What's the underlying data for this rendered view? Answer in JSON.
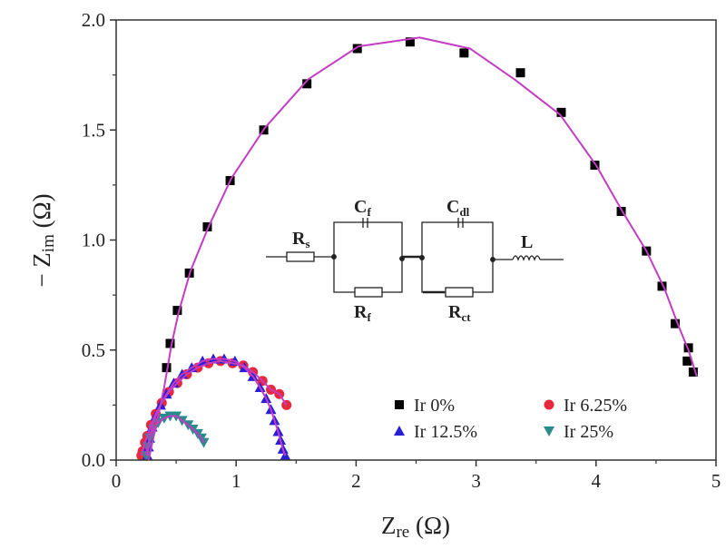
{
  "chart_data": {
    "type": "scatter",
    "title": "",
    "xlabel": {
      "main": "Z",
      "sub": "re",
      "unit": " (Ω)"
    },
    "ylabel": {
      "main": "− Z",
      "sub": "im",
      "unit": " (Ω)"
    },
    "xlim": [
      0,
      5
    ],
    "ylim": [
      0,
      2.0
    ],
    "xticks": [
      "0",
      "1",
      "2",
      "3",
      "4",
      "5"
    ],
    "xtick_values": [
      0,
      1,
      2,
      3,
      4,
      5
    ],
    "yticks": [
      "0.0",
      "0.5",
      "1.0",
      "1.5",
      "2.0"
    ],
    "ytick_values": [
      0,
      0.5,
      1.0,
      1.5,
      2.0
    ],
    "grid": false,
    "legend_position": "bottom-right",
    "fit_color": "#c43cc4",
    "series": [
      {
        "name": "Ir 0%",
        "marker": "square",
        "color": "#000000",
        "x": [
          0.42,
          0.45,
          0.51,
          0.61,
          0.76,
          0.95,
          1.23,
          1.59,
          2.01,
          2.45,
          2.9,
          3.37,
          3.71,
          3.99,
          4.21,
          4.42,
          4.55,
          4.66,
          4.77,
          4.76,
          4.81
        ],
        "y": [
          0.42,
          0.53,
          0.68,
          0.85,
          1.06,
          1.27,
          1.5,
          1.71,
          1.87,
          1.9,
          1.85,
          1.76,
          1.58,
          1.34,
          1.13,
          0.95,
          0.79,
          0.62,
          0.51,
          0.45,
          0.4
        ],
        "fit_x": [
          0.27,
          0.33,
          0.4,
          0.46,
          0.52,
          0.62,
          0.77,
          0.96,
          1.24,
          1.6,
          2.02,
          2.53,
          2.95,
          3.32,
          3.7,
          4.0,
          4.22,
          4.42,
          4.57,
          4.68,
          4.77,
          4.84
        ],
        "fit_y": [
          0.0,
          0.15,
          0.33,
          0.52,
          0.67,
          0.86,
          1.06,
          1.28,
          1.51,
          1.73,
          1.88,
          1.92,
          1.87,
          1.73,
          1.57,
          1.34,
          1.13,
          0.95,
          0.78,
          0.62,
          0.5,
          0.38
        ]
      },
      {
        "name": "Ir 6.25%",
        "marker": "circle",
        "color": "#e8283c",
        "x": [
          0.21,
          0.22,
          0.24,
          0.26,
          0.29,
          0.33,
          0.38,
          0.44,
          0.51,
          0.59,
          0.68,
          0.77,
          0.87,
          0.97,
          1.06,
          1.14,
          1.22,
          1.29,
          1.36,
          1.42
        ],
        "y": [
          0.02,
          0.04,
          0.08,
          0.11,
          0.16,
          0.21,
          0.26,
          0.31,
          0.35,
          0.39,
          0.42,
          0.44,
          0.45,
          0.44,
          0.43,
          0.4,
          0.36,
          0.32,
          0.3,
          0.25
        ]
      },
      {
        "name": "Ir 12.5%",
        "marker": "triangle-up",
        "color": "#2a1fd6",
        "x": [
          0.26,
          0.27,
          0.28,
          0.3,
          0.33,
          0.37,
          0.42,
          0.48,
          0.55,
          0.63,
          0.72,
          0.81,
          0.9,
          0.99,
          1.07,
          1.14,
          1.2,
          1.25,
          1.29,
          1.32,
          1.35,
          1.37,
          1.39,
          1.41
        ],
        "y": [
          0.02,
          0.06,
          0.1,
          0.15,
          0.2,
          0.25,
          0.3,
          0.35,
          0.39,
          0.42,
          0.45,
          0.46,
          0.46,
          0.45,
          0.42,
          0.38,
          0.33,
          0.28,
          0.23,
          0.18,
          0.13,
          0.09,
          0.05,
          0.02
        ]
      },
      {
        "name": "Ir 25%",
        "marker": "triangle-down",
        "color": "#2a8a8c",
        "x": [
          0.25,
          0.26,
          0.28,
          0.31,
          0.35,
          0.4,
          0.45,
          0.5,
          0.55,
          0.6,
          0.64,
          0.68,
          0.71,
          0.73
        ],
        "y": [
          0.02,
          0.06,
          0.1,
          0.14,
          0.17,
          0.19,
          0.2,
          0.2,
          0.18,
          0.16,
          0.14,
          0.12,
          0.1,
          0.08
        ]
      }
    ],
    "inset_circuit": {
      "Rs": {
        "main": "R",
        "sub": "s"
      },
      "Cf": {
        "main": "C",
        "sub": "f"
      },
      "Rf": {
        "main": "R",
        "sub": "f"
      },
      "Cdl": {
        "main": "C",
        "sub": "dl"
      },
      "Rct": {
        "main": "R",
        "sub": "ct"
      },
      "L": {
        "main": "L",
        "sub": ""
      }
    }
  }
}
